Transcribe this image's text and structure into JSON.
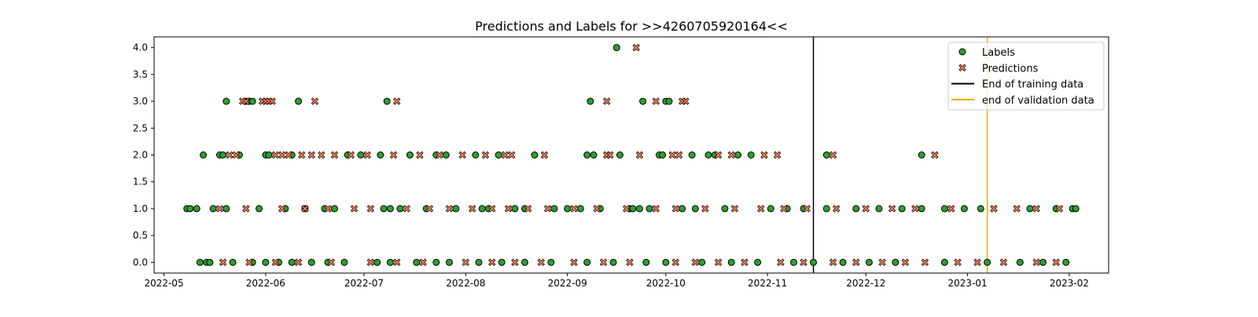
{
  "chart_data": {
    "type": "scatter",
    "title": "Predictions and Labels for >>4260705920164<<",
    "xlabel": "",
    "ylabel": "",
    "x_axis": "date",
    "xlim": [
      "2022-04-28",
      "2023-02-13"
    ],
    "ylim": [
      -0.2,
      4.2
    ],
    "grid": false,
    "legend_position": "top-right",
    "x_ticks": [
      "2022-05-01",
      "2022-06-01",
      "2022-07-01",
      "2022-08-01",
      "2022-09-01",
      "2022-10-01",
      "2022-11-01",
      "2022-12-01",
      "2023-01-01",
      "2023-02-01"
    ],
    "x_tick_labels": [
      "2022-05",
      "2022-06",
      "2022-07",
      "2022-08",
      "2022-09",
      "2022-10",
      "2022-11",
      "2022-12",
      "2023-01",
      "2023-02"
    ],
    "y_ticks": [
      0.0,
      0.5,
      1.0,
      1.5,
      2.0,
      2.5,
      3.0,
      3.5,
      4.0
    ],
    "y_tick_labels": [
      "0.0",
      "0.5",
      "1.0",
      "1.5",
      "2.0",
      "2.5",
      "3.0",
      "3.5",
      "4.0"
    ],
    "vlines": [
      {
        "name": "End of training data",
        "x": "2022-11-15",
        "color": "#000000"
      },
      {
        "name": "end of validation data",
        "x": "2023-01-07",
        "color": "#FFA500"
      }
    ],
    "series": [
      {
        "name": "Labels",
        "marker": "circle",
        "color": "#2ca02c",
        "edge_color": "#000000",
        "points": [
          {
            "x": "2022-05-08",
            "y": 1
          },
          {
            "x": "2022-05-09",
            "y": 1
          },
          {
            "x": "2022-05-11",
            "y": 1
          },
          {
            "x": "2022-05-13",
            "y": 2
          },
          {
            "x": "2022-05-16",
            "y": 1
          },
          {
            "x": "2022-05-18",
            "y": 2
          },
          {
            "x": "2022-05-19",
            "y": 2
          },
          {
            "x": "2022-05-20",
            "y": 3
          },
          {
            "x": "2022-05-20",
            "y": 1
          },
          {
            "x": "2022-05-24",
            "y": 2
          },
          {
            "x": "2022-05-26",
            "y": 3
          },
          {
            "x": "2022-05-27",
            "y": 3
          },
          {
            "x": "2022-05-28",
            "y": 3
          },
          {
            "x": "2022-05-30",
            "y": 1
          },
          {
            "x": "2022-06-01",
            "y": 2
          },
          {
            "x": "2022-06-02",
            "y": 2
          },
          {
            "x": "2022-06-07",
            "y": 1
          },
          {
            "x": "2022-06-09",
            "y": 2
          },
          {
            "x": "2022-06-11",
            "y": 3
          },
          {
            "x": "2022-06-13",
            "y": 1
          },
          {
            "x": "2022-06-19",
            "y": 1
          },
          {
            "x": "2022-06-22",
            "y": 1
          },
          {
            "x": "2022-06-26",
            "y": 2
          },
          {
            "x": "2022-06-30",
            "y": 2
          },
          {
            "x": "2022-07-06",
            "y": 2
          },
          {
            "x": "2022-07-07",
            "y": 1
          },
          {
            "x": "2022-07-08",
            "y": 3
          },
          {
            "x": "2022-07-09",
            "y": 1
          },
          {
            "x": "2022-07-12",
            "y": 1
          },
          {
            "x": "2022-07-15",
            "y": 2
          },
          {
            "x": "2022-07-20",
            "y": 1
          },
          {
            "x": "2022-07-23",
            "y": 2
          },
          {
            "x": "2022-07-26",
            "y": 2
          },
          {
            "x": "2022-07-29",
            "y": 1
          },
          {
            "x": "2022-08-04",
            "y": 2
          },
          {
            "x": "2022-08-06",
            "y": 1
          },
          {
            "x": "2022-08-08",
            "y": 1
          },
          {
            "x": "2022-08-11",
            "y": 2
          },
          {
            "x": "2022-08-16",
            "y": 1
          },
          {
            "x": "2022-08-19",
            "y": 1
          },
          {
            "x": "2022-08-22",
            "y": 2
          },
          {
            "x": "2022-08-28",
            "y": 1
          },
          {
            "x": "2022-09-01",
            "y": 1
          },
          {
            "x": "2022-09-05",
            "y": 1
          },
          {
            "x": "2022-09-07",
            "y": 2
          },
          {
            "x": "2022-09-08",
            "y": 3
          },
          {
            "x": "2022-09-09",
            "y": 2
          },
          {
            "x": "2022-09-11",
            "y": 1
          },
          {
            "x": "2022-09-16",
            "y": 4
          },
          {
            "x": "2022-09-17",
            "y": 2
          },
          {
            "x": "2022-09-20",
            "y": 1
          },
          {
            "x": "2022-09-21",
            "y": 1
          },
          {
            "x": "2022-09-23",
            "y": 1
          },
          {
            "x": "2022-09-24",
            "y": 3
          },
          {
            "x": "2022-09-26",
            "y": 1
          },
          {
            "x": "2022-09-29",
            "y": 2
          },
          {
            "x": "2022-09-30",
            "y": 2
          },
          {
            "x": "2022-10-01",
            "y": 3
          },
          {
            "x": "2022-10-02",
            "y": 3
          },
          {
            "x": "2022-10-06",
            "y": 1
          },
          {
            "x": "2022-10-09",
            "y": 2
          },
          {
            "x": "2022-10-10",
            "y": 1
          },
          {
            "x": "2022-10-14",
            "y": 2
          },
          {
            "x": "2022-10-16",
            "y": 2
          },
          {
            "x": "2022-10-19",
            "y": 1
          },
          {
            "x": "2022-10-23",
            "y": 2
          },
          {
            "x": "2022-10-27",
            "y": 2
          },
          {
            "x": "2022-11-02",
            "y": 1
          },
          {
            "x": "2022-11-07",
            "y": 1
          },
          {
            "x": "2022-11-12",
            "y": 1
          },
          {
            "x": "2022-11-19",
            "y": 2
          },
          {
            "x": "2022-11-19",
            "y": 1
          },
          {
            "x": "2022-11-28",
            "y": 1
          },
          {
            "x": "2022-12-05",
            "y": 1
          },
          {
            "x": "2022-12-12",
            "y": 1
          },
          {
            "x": "2022-12-18",
            "y": 2
          },
          {
            "x": "2022-12-18",
            "y": 1
          },
          {
            "x": "2022-12-25",
            "y": 1
          },
          {
            "x": "2022-12-31",
            "y": 1
          },
          {
            "x": "2023-01-05",
            "y": 1
          },
          {
            "x": "2023-01-20",
            "y": 1
          },
          {
            "x": "2023-01-28",
            "y": 1
          },
          {
            "x": "2023-02-02",
            "y": 1
          },
          {
            "x": "2023-02-03",
            "y": 1
          },
          {
            "x": "2022-05-12",
            "y": 0
          },
          {
            "x": "2022-05-14",
            "y": 0
          },
          {
            "x": "2022-05-15",
            "y": 0
          },
          {
            "x": "2022-05-22",
            "y": 0
          },
          {
            "x": "2022-05-28",
            "y": 0
          },
          {
            "x": "2022-06-01",
            "y": 0
          },
          {
            "x": "2022-06-05",
            "y": 0
          },
          {
            "x": "2022-06-09",
            "y": 0
          },
          {
            "x": "2022-06-15",
            "y": 0
          },
          {
            "x": "2022-06-20",
            "y": 0
          },
          {
            "x": "2022-06-25",
            "y": 0
          },
          {
            "x": "2022-07-05",
            "y": 0
          },
          {
            "x": "2022-07-09",
            "y": 0
          },
          {
            "x": "2022-07-17",
            "y": 0
          },
          {
            "x": "2022-07-23",
            "y": 0
          },
          {
            "x": "2022-07-27",
            "y": 0
          },
          {
            "x": "2022-08-05",
            "y": 0
          },
          {
            "x": "2022-08-12",
            "y": 0
          },
          {
            "x": "2022-08-19",
            "y": 0
          },
          {
            "x": "2022-08-27",
            "y": 0
          },
          {
            "x": "2022-09-07",
            "y": 0
          },
          {
            "x": "2022-09-15",
            "y": 0
          },
          {
            "x": "2022-09-25",
            "y": 0
          },
          {
            "x": "2022-10-01",
            "y": 0
          },
          {
            "x": "2022-10-12",
            "y": 0
          },
          {
            "x": "2022-10-21",
            "y": 0
          },
          {
            "x": "2022-10-29",
            "y": 0
          },
          {
            "x": "2022-11-09",
            "y": 0
          },
          {
            "x": "2022-11-15",
            "y": 0
          },
          {
            "x": "2022-11-24",
            "y": 0
          },
          {
            "x": "2022-12-02",
            "y": 0
          },
          {
            "x": "2022-12-10",
            "y": 0
          },
          {
            "x": "2022-12-25",
            "y": 0
          },
          {
            "x": "2023-01-07",
            "y": 0
          },
          {
            "x": "2023-01-17",
            "y": 0
          },
          {
            "x": "2023-01-24",
            "y": 0
          },
          {
            "x": "2023-01-31",
            "y": 0
          }
        ]
      },
      {
        "name": "Predictions",
        "marker": "x",
        "color": "#ff7f50",
        "edge_color": "#000000",
        "points": [
          {
            "x": "2022-05-21",
            "y": 2
          },
          {
            "x": "2022-05-23",
            "y": 2
          },
          {
            "x": "2022-05-25",
            "y": 3
          },
          {
            "x": "2022-05-26",
            "y": 3
          },
          {
            "x": "2022-05-31",
            "y": 3
          },
          {
            "x": "2022-06-01",
            "y": 3
          },
          {
            "x": "2022-06-02",
            "y": 3
          },
          {
            "x": "2022-06-03",
            "y": 3
          },
          {
            "x": "2022-06-04",
            "y": 2
          },
          {
            "x": "2022-06-06",
            "y": 2
          },
          {
            "x": "2022-06-08",
            "y": 2
          },
          {
            "x": "2022-06-12",
            "y": 2
          },
          {
            "x": "2022-06-15",
            "y": 2
          },
          {
            "x": "2022-06-16",
            "y": 3
          },
          {
            "x": "2022-06-18",
            "y": 2
          },
          {
            "x": "2022-06-22",
            "y": 2
          },
          {
            "x": "2022-06-27",
            "y": 2
          },
          {
            "x": "2022-07-02",
            "y": 2
          },
          {
            "x": "2022-07-10",
            "y": 2
          },
          {
            "x": "2022-07-11",
            "y": 3
          },
          {
            "x": "2022-07-18",
            "y": 2
          },
          {
            "x": "2022-07-24",
            "y": 2
          },
          {
            "x": "2022-07-31",
            "y": 2
          },
          {
            "x": "2022-08-07",
            "y": 2
          },
          {
            "x": "2022-08-13",
            "y": 2
          },
          {
            "x": "2022-08-15",
            "y": 2
          },
          {
            "x": "2022-08-25",
            "y": 2
          },
          {
            "x": "2022-09-13",
            "y": 2
          },
          {
            "x": "2022-09-13",
            "y": 3
          },
          {
            "x": "2022-09-14",
            "y": 2
          },
          {
            "x": "2022-09-22",
            "y": 4
          },
          {
            "x": "2022-09-23",
            "y": 2
          },
          {
            "x": "2022-09-28",
            "y": 3
          },
          {
            "x": "2022-10-03",
            "y": 2
          },
          {
            "x": "2022-10-05",
            "y": 2
          },
          {
            "x": "2022-10-06",
            "y": 3
          },
          {
            "x": "2022-10-07",
            "y": 3
          },
          {
            "x": "2022-10-17",
            "y": 2
          },
          {
            "x": "2022-10-21",
            "y": 2
          },
          {
            "x": "2022-10-31",
            "y": 2
          },
          {
            "x": "2022-11-04",
            "y": 2
          },
          {
            "x": "2022-11-21",
            "y": 2
          },
          {
            "x": "2022-12-22",
            "y": 2
          },
          {
            "x": "2022-05-18",
            "y": 1
          },
          {
            "x": "2022-05-26",
            "y": 1
          },
          {
            "x": "2022-06-06",
            "y": 1
          },
          {
            "x": "2022-06-13",
            "y": 1
          },
          {
            "x": "2022-06-20",
            "y": 1
          },
          {
            "x": "2022-06-28",
            "y": 1
          },
          {
            "x": "2022-07-03",
            "y": 1
          },
          {
            "x": "2022-07-14",
            "y": 1
          },
          {
            "x": "2022-07-21",
            "y": 1
          },
          {
            "x": "2022-07-27",
            "y": 1
          },
          {
            "x": "2022-08-03",
            "y": 1
          },
          {
            "x": "2022-08-09",
            "y": 1
          },
          {
            "x": "2022-08-14",
            "y": 1
          },
          {
            "x": "2022-08-20",
            "y": 1
          },
          {
            "x": "2022-08-26",
            "y": 1
          },
          {
            "x": "2022-09-03",
            "y": 1
          },
          {
            "x": "2022-09-10",
            "y": 1
          },
          {
            "x": "2022-09-19",
            "y": 1
          },
          {
            "x": "2022-09-28",
            "y": 1
          },
          {
            "x": "2022-10-04",
            "y": 1
          },
          {
            "x": "2022-10-13",
            "y": 1
          },
          {
            "x": "2022-10-22",
            "y": 1
          },
          {
            "x": "2022-10-30",
            "y": 1
          },
          {
            "x": "2022-11-06",
            "y": 1
          },
          {
            "x": "2022-11-13",
            "y": 1
          },
          {
            "x": "2022-11-22",
            "y": 1
          },
          {
            "x": "2022-12-01",
            "y": 1
          },
          {
            "x": "2022-12-09",
            "y": 1
          },
          {
            "x": "2022-12-16",
            "y": 1
          },
          {
            "x": "2022-12-27",
            "y": 1
          },
          {
            "x": "2023-01-09",
            "y": 1
          },
          {
            "x": "2023-01-16",
            "y": 1
          },
          {
            "x": "2023-01-22",
            "y": 1
          },
          {
            "x": "2023-01-29",
            "y": 1
          },
          {
            "x": "2022-05-19",
            "y": 0
          },
          {
            "x": "2022-05-27",
            "y": 0
          },
          {
            "x": "2022-06-04",
            "y": 0
          },
          {
            "x": "2022-06-11",
            "y": 0
          },
          {
            "x": "2022-06-21",
            "y": 0
          },
          {
            "x": "2022-07-03",
            "y": 0
          },
          {
            "x": "2022-07-11",
            "y": 0
          },
          {
            "x": "2022-07-19",
            "y": 0
          },
          {
            "x": "2022-08-01",
            "y": 0
          },
          {
            "x": "2022-08-09",
            "y": 0
          },
          {
            "x": "2022-08-16",
            "y": 0
          },
          {
            "x": "2022-08-24",
            "y": 0
          },
          {
            "x": "2022-09-03",
            "y": 0
          },
          {
            "x": "2022-09-12",
            "y": 0
          },
          {
            "x": "2022-09-20",
            "y": 0
          },
          {
            "x": "2022-10-04",
            "y": 0
          },
          {
            "x": "2022-10-10",
            "y": 0
          },
          {
            "x": "2022-10-17",
            "y": 0
          },
          {
            "x": "2022-10-25",
            "y": 0
          },
          {
            "x": "2022-11-05",
            "y": 0
          },
          {
            "x": "2022-11-12",
            "y": 0
          },
          {
            "x": "2022-11-21",
            "y": 0
          },
          {
            "x": "2022-11-28",
            "y": 0
          },
          {
            "x": "2022-12-06",
            "y": 0
          },
          {
            "x": "2022-12-13",
            "y": 0
          },
          {
            "x": "2022-12-19",
            "y": 0
          },
          {
            "x": "2022-12-29",
            "y": 0
          },
          {
            "x": "2023-01-04",
            "y": 0
          },
          {
            "x": "2023-01-12",
            "y": 0
          },
          {
            "x": "2023-01-22",
            "y": 0
          },
          {
            "x": "2023-01-28",
            "y": 0
          }
        ]
      }
    ]
  }
}
